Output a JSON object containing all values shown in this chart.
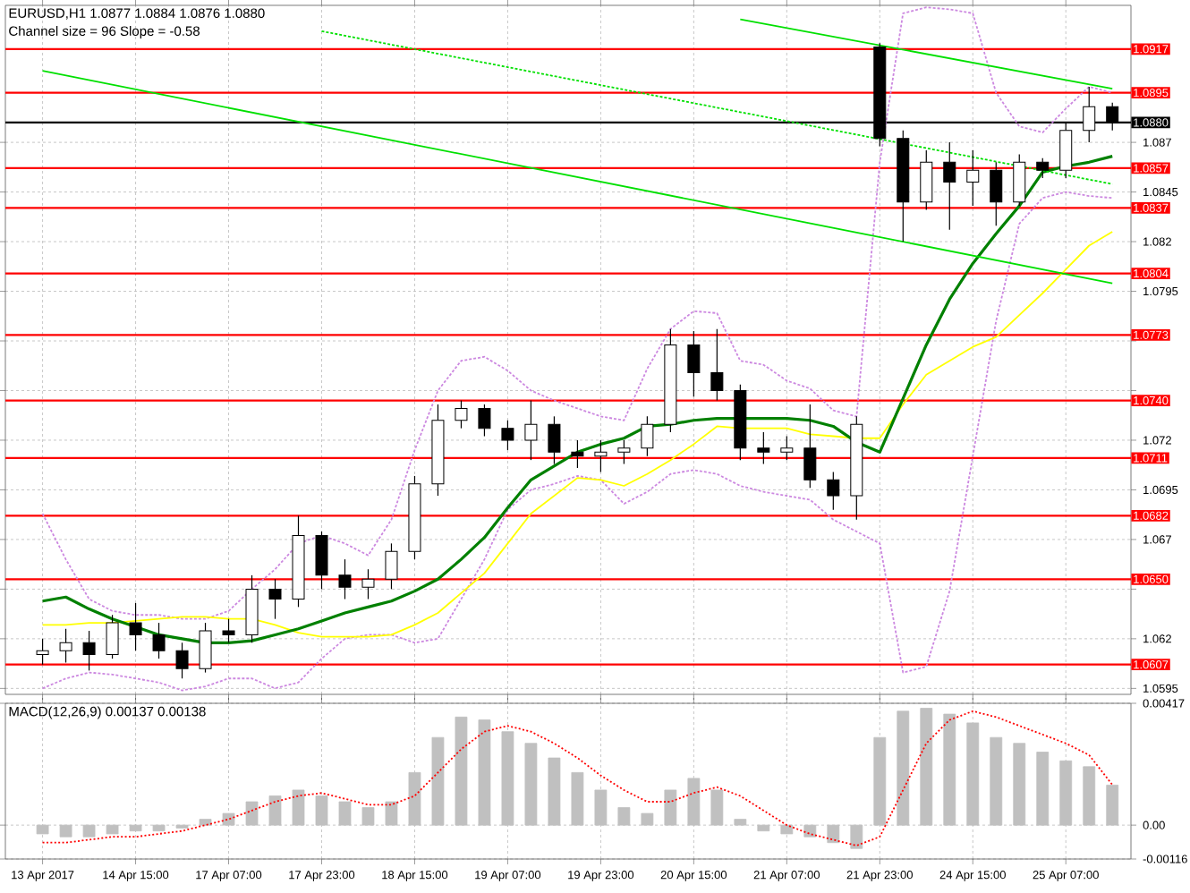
{
  "chart_data": [
    {
      "type": "candlestick",
      "title": "EURUSD,H1 1.0877 1.0884 1.0876 1.0880",
      "annotations": [
        "Channel size = 96 Slope = -0.58"
      ],
      "categories": [
        null,
        null,
        null,
        null,
        null,
        null,
        null,
        null,
        null,
        null,
        null,
        null,
        null,
        null,
        null,
        null,
        null,
        null,
        null,
        null,
        null,
        null,
        null,
        null,
        null,
        null,
        null,
        null,
        null,
        null,
        null,
        null,
        null,
        null,
        null,
        null,
        null,
        null,
        null,
        null,
        null,
        null,
        null,
        null,
        null,
        null,
        null
      ],
      "ohlc": [
        [
          1.0612,
          1.062,
          1.0607,
          1.0614
        ],
        [
          1.0614,
          1.0625,
          1.0608,
          1.0618
        ],
        [
          1.0618,
          1.0624,
          1.0604,
          1.0612
        ],
        [
          1.0612,
          1.0632,
          1.061,
          1.0628
        ],
        [
          1.0628,
          1.0638,
          1.0614,
          1.0622
        ],
        [
          1.0622,
          1.0628,
          1.061,
          1.0614
        ],
        [
          1.0614,
          1.0618,
          1.06,
          1.0605
        ],
        [
          1.0605,
          1.0628,
          1.0603,
          1.0624
        ],
        [
          1.0624,
          1.063,
          1.0618,
          1.0622
        ],
        [
          1.0622,
          1.0652,
          1.0618,
          1.0645
        ],
        [
          1.0645,
          1.065,
          1.063,
          1.064
        ],
        [
          1.064,
          1.0682,
          1.0636,
          1.0672
        ],
        [
          1.0672,
          1.0674,
          1.0645,
          1.0652
        ],
        [
          1.0652,
          1.066,
          1.064,
          1.0646
        ],
        [
          1.0646,
          1.0655,
          1.064,
          1.065
        ],
        [
          1.065,
          1.0668,
          1.0645,
          1.0664
        ],
        [
          1.0664,
          1.0702,
          1.066,
          1.0698
        ],
        [
          1.0698,
          1.0738,
          1.0692,
          1.073
        ],
        [
          1.073,
          1.074,
          1.0726,
          1.0736
        ],
        [
          1.0736,
          1.0738,
          1.0722,
          1.0726
        ],
        [
          1.0726,
          1.073,
          1.0715,
          1.072
        ],
        [
          1.072,
          1.074,
          1.071,
          1.0728
        ],
        [
          1.0728,
          1.0732,
          1.0708,
          1.0714
        ],
        [
          1.0714,
          1.072,
          1.0706,
          1.0712
        ],
        [
          1.0712,
          1.072,
          1.0704,
          1.0714
        ],
        [
          1.0714,
          1.072,
          1.0708,
          1.0716
        ],
        [
          1.0716,
          1.0732,
          1.0712,
          1.0728
        ],
        [
          1.0728,
          1.0776,
          1.0724,
          1.0768
        ],
        [
          1.0768,
          1.0775,
          1.0742,
          1.0754
        ],
        [
          1.0754,
          1.0776,
          1.074,
          1.0745
        ],
        [
          1.0745,
          1.0748,
          1.071,
          1.0716
        ],
        [
          1.0716,
          1.0724,
          1.0708,
          1.0714
        ],
        [
          1.0714,
          1.0722,
          1.071,
          1.0716
        ],
        [
          1.0716,
          1.0738,
          1.0696,
          1.07
        ],
        [
          1.07,
          1.0704,
          1.0685,
          1.0692
        ],
        [
          1.0692,
          1.0732,
          1.068,
          1.0728
        ],
        [
          1.0918,
          1.092,
          1.0868,
          1.0872
        ],
        [
          1.0872,
          1.0876,
          1.082,
          1.084
        ],
        [
          1.084,
          1.0866,
          1.0836,
          1.086
        ],
        [
          1.086,
          1.087,
          1.0826,
          1.085
        ],
        [
          1.085,
          1.0866,
          1.0838,
          1.0856
        ],
        [
          1.0856,
          1.086,
          1.0828,
          1.084
        ],
        [
          1.084,
          1.0864,
          1.0838,
          1.086
        ],
        [
          1.086,
          1.0862,
          1.0852,
          1.0856
        ],
        [
          1.0856,
          1.088,
          1.0852,
          1.0876
        ],
        [
          1.0876,
          1.0898,
          1.087,
          1.0888
        ],
        [
          1.0888,
          1.089,
          1.0876,
          1.088
        ]
      ],
      "series": [
        {
          "type": "line",
          "color": "#cc88e0",
          "line_style": "dashed",
          "values": [
            1.0683,
            1.066,
            1.064,
            1.0634,
            1.0632,
            1.0632,
            1.063,
            1.063,
            1.0634,
            1.0645,
            1.0655,
            1.0668,
            1.0672,
            1.0668,
            1.0662,
            1.068,
            1.0715,
            1.0745,
            1.076,
            1.0762,
            1.0755,
            1.0745,
            1.074,
            1.0736,
            1.0732,
            1.073,
            1.0756,
            1.0776,
            1.0785,
            1.0784,
            1.076,
            1.0758,
            1.075,
            1.0746,
            1.0735,
            1.0732,
            1.086,
            1.0935,
            1.0938,
            1.0937,
            1.0935,
            1.0895,
            1.0878,
            1.0875,
            1.0887,
            1.0898,
            1.0895
          ]
        },
        {
          "type": "line",
          "color": "#cc88e0",
          "line_style": "dashed",
          "values": [
            1.0595,
            1.06,
            1.0603,
            1.0602,
            1.06,
            1.0598,
            1.0594,
            1.0596,
            1.06,
            1.06,
            1.0595,
            1.0598,
            1.061,
            1.062,
            1.0622,
            1.0622,
            1.0618,
            1.062,
            1.064,
            1.066,
            1.0685,
            1.0695,
            1.0698,
            1.0702,
            1.07,
            1.0688,
            1.0694,
            1.0703,
            1.0705,
            1.0703,
            1.0697,
            1.0694,
            1.0692,
            1.069,
            1.068,
            1.0674,
            1.0668,
            1.0603,
            1.0606,
            1.0644,
            1.0712,
            1.078,
            1.0829,
            1.0842,
            1.0845,
            1.0843,
            1.0842
          ]
        },
        {
          "type": "line",
          "color": "#ffff00",
          "line_style": "solid",
          "values": [
            1.0627,
            1.0627,
            1.0628,
            1.0628,
            1.0629,
            1.063,
            1.0631,
            1.0631,
            1.063,
            1.063,
            1.0627,
            1.0623,
            1.0621,
            1.0621,
            1.0621,
            1.0622,
            1.0627,
            1.0633,
            1.0643,
            1.0653,
            1.0668,
            1.0683,
            1.0692,
            1.0701,
            1.07,
            1.0697,
            1.0703,
            1.071,
            1.0718,
            1.0727,
            1.0726,
            1.0726,
            1.0726,
            1.0723,
            1.0722,
            1.0721,
            1.0721,
            1.0738,
            1.0753,
            1.076,
            1.0767,
            1.0772,
            1.0783,
            1.0794,
            1.0806,
            1.0818,
            1.0825
          ]
        },
        {
          "type": "line",
          "color": "#008000",
          "line_style": "solid",
          "values": [
            1.0639,
            1.0641,
            1.0635,
            1.063,
            1.0626,
            1.0622,
            1.062,
            1.0618,
            1.0618,
            1.0619,
            1.0622,
            1.0625,
            1.0629,
            1.0633,
            1.0636,
            1.0639,
            1.0644,
            1.065,
            1.066,
            1.0671,
            1.0686,
            1.07,
            1.0707,
            1.0714,
            1.0718,
            1.0721,
            1.0727,
            1.0728,
            1.073,
            1.0731,
            1.0731,
            1.0731,
            1.0731,
            1.073,
            1.0727,
            1.0719,
            1.0714,
            1.0741,
            1.0768,
            1.0791,
            1.0809,
            1.0824,
            1.0838,
            1.0855,
            1.0858,
            1.086,
            1.0863
          ]
        },
        {
          "type": "line",
          "color": "#00e000",
          "line_style": "solid",
          "values": [
            1.0906,
            null,
            null,
            null,
            null,
            null,
            null,
            null,
            null,
            null,
            null,
            null,
            null,
            null,
            null,
            null,
            null,
            null,
            null,
            null,
            null,
            null,
            null,
            null,
            null,
            null,
            null,
            null,
            null,
            null,
            null,
            null,
            null,
            null,
            null,
            null,
            null,
            null,
            null,
            null,
            null,
            null,
            null,
            null,
            null,
            null,
            1.0799
          ]
        },
        {
          "type": "line",
          "color": "#00e000",
          "line_style": "solid",
          "values": [
            null,
            null,
            null,
            null,
            null,
            null,
            null,
            null,
            null,
            null,
            null,
            null,
            null,
            null,
            null,
            null,
            null,
            null,
            null,
            null,
            null,
            null,
            null,
            null,
            null,
            null,
            null,
            null,
            null,
            null,
            1.0932,
            null,
            null,
            null,
            null,
            null,
            null,
            null,
            null,
            null,
            null,
            null,
            null,
            null,
            null,
            null,
            1.0897
          ]
        },
        {
          "type": "line",
          "color": "#00e000",
          "line_style": "dashed",
          "values": [
            null,
            null,
            null,
            null,
            null,
            null,
            null,
            null,
            null,
            null,
            null,
            null,
            1.0926,
            null,
            null,
            null,
            null,
            null,
            null,
            null,
            null,
            null,
            null,
            null,
            null,
            null,
            null,
            null,
            null,
            null,
            null,
            null,
            null,
            null,
            null,
            null,
            null,
            null,
            null,
            null,
            null,
            null,
            null,
            null,
            null,
            null,
            1.0849
          ]
        }
      ],
      "ylim": [
        1.0592,
        1.0939
      ],
      "yticks": [
        1.0595,
        1.062,
        {
          "value": 1.0645,
          "label": null
        },
        1.067,
        1.0695,
        1.072,
        {
          "value": 1.0745,
          "label": null
        },
        {
          "value": 1.077,
          "label": null
        },
        1.0795,
        1.082,
        1.0845,
        1.087
      ],
      "ref_lines": [
        {
          "axis": "y",
          "value": 1.0917,
          "label": "1.0917",
          "color": "#ff0000"
        },
        {
          "axis": "y",
          "value": 1.0895,
          "label": "1.0895",
          "color": "#ff0000"
        },
        {
          "axis": "y",
          "value": 1.0857,
          "label": "1.0857",
          "color": "#ff0000"
        },
        {
          "axis": "y",
          "value": 1.0837,
          "label": "1.0837",
          "color": "#ff0000"
        },
        {
          "axis": "y",
          "value": 1.0804,
          "label": "1.0804",
          "color": "#ff0000"
        },
        {
          "axis": "y",
          "value": 1.0773,
          "label": "1.0773",
          "color": "#ff0000"
        },
        {
          "axis": "y",
          "value": 1.074,
          "label": "1.0740",
          "color": "#ff0000"
        },
        {
          "axis": "y",
          "value": 1.0711,
          "label": "1.0711",
          "color": "#ff0000"
        },
        {
          "axis": "y",
          "value": 1.0682,
          "label": "1.0682",
          "color": "#ff0000"
        },
        {
          "axis": "y",
          "value": 1.065,
          "label": "1.0650",
          "color": "#ff0000"
        },
        {
          "axis": "y",
          "value": 1.0607,
          "label": "1.0607",
          "color": "#ff0000"
        },
        {
          "axis": "y",
          "value": 1.088,
          "label": "1.0880",
          "color": "#000000"
        }
      ],
      "grid": true,
      "tick_labels": "y"
    },
    {
      "type": "bar",
      "title": "MACD(12,26,9) 0.00137 0.00138",
      "categories": [
        "13 Apr 2017",
        null,
        null,
        null,
        "14 Apr 15:00",
        null,
        null,
        null,
        "17 Apr 07:00",
        null,
        null,
        null,
        "17 Apr 23:00",
        null,
        null,
        null,
        "18 Apr 15:00",
        null,
        null,
        null,
        "19 Apr 07:00",
        null,
        null,
        null,
        "19 Apr 23:00",
        null,
        null,
        null,
        "20 Apr 15:00",
        null,
        null,
        null,
        "21 Apr 07:00",
        null,
        null,
        null,
        "21 Apr 23:00",
        null,
        null,
        null,
        "24 Apr 15:00",
        null,
        null,
        null,
        "25 Apr 07:00",
        null,
        null
      ],
      "series": [
        {
          "type": "bar",
          "color": "#c0c0c0",
          "values": [
            -0.0003,
            -0.0004,
            -0.0004,
            -0.0003,
            -0.0002,
            -0.0002,
            -0.0001,
            0.0002,
            0.0004,
            0.0008,
            0.001,
            0.0012,
            0.001,
            0.0008,
            0.0006,
            0.0008,
            0.0018,
            0.003,
            0.0037,
            0.0036,
            0.0032,
            0.0028,
            0.0023,
            0.0018,
            0.0012,
            0.0006,
            0.0004,
            0.0012,
            0.0016,
            0.0012,
            0.0002,
            -0.0002,
            -0.0003,
            -0.0004,
            -0.0006,
            -0.0008,
            0.003,
            0.0039,
            0.004,
            0.0038,
            0.0035,
            0.003,
            0.0028,
            0.0025,
            0.0022,
            0.002,
            0.00137
          ]
        },
        {
          "type": "line",
          "color": "#ff0000",
          "line_style": "dotted",
          "values": [
            -0.0006,
            -0.0006,
            -0.0005,
            -0.0004,
            -0.0004,
            -0.0003,
            -0.0002,
            0.0,
            0.0002,
            0.0005,
            0.0008,
            0.001,
            0.0011,
            0.0009,
            0.0007,
            0.0007,
            0.001,
            0.0018,
            0.0026,
            0.0032,
            0.0034,
            0.0032,
            0.0028,
            0.0023,
            0.0017,
            0.0012,
            0.0008,
            0.0008,
            0.0011,
            0.0013,
            0.001,
            0.0005,
            0.0,
            -0.0003,
            -0.0005,
            -0.0007,
            -0.0004,
            0.0012,
            0.0028,
            0.0036,
            0.0039,
            0.0037,
            0.0034,
            0.0031,
            0.0028,
            0.0024,
            0.00138
          ]
        }
      ],
      "ylim": [
        -0.00116,
        0.00417
      ],
      "yticks": [
        -0.00116,
        {
          "value": 0,
          "label": "0.00"
        },
        0.00417
      ],
      "grid": true
    }
  ]
}
